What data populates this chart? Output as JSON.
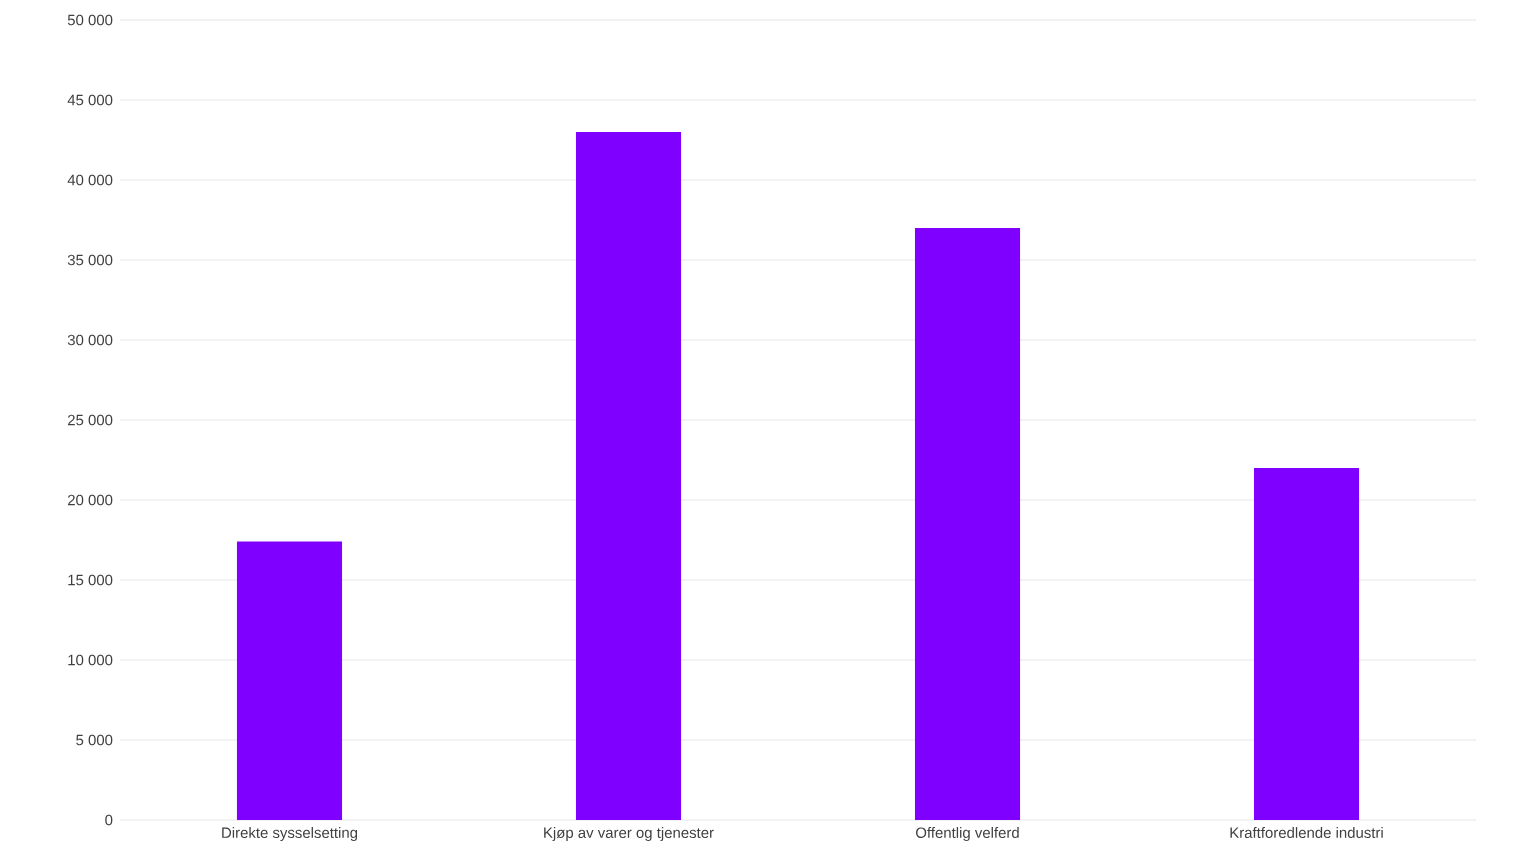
{
  "chart_data": {
    "type": "bar",
    "categories": [
      "Direkte sysselsetting",
      "Kjøp av varer og tjenester",
      "Offentlig velferd",
      "Kraftforedlende industri"
    ],
    "values": [
      17400,
      43000,
      37000,
      22000
    ],
    "color": "#8000ff",
    "ylim": [
      0,
      50000
    ],
    "yticks": [
      {
        "value": 0,
        "label": "0"
      },
      {
        "value": 5000,
        "label": "5 000"
      },
      {
        "value": 10000,
        "label": "10 000"
      },
      {
        "value": 15000,
        "label": "15 000"
      },
      {
        "value": 20000,
        "label": "20 000"
      },
      {
        "value": 25000,
        "label": "25 000"
      },
      {
        "value": 30000,
        "label": "30 000"
      },
      {
        "value": 35000,
        "label": "35 000"
      },
      {
        "value": 40000,
        "label": "40 000"
      },
      {
        "value": 45000,
        "label": "45 000"
      },
      {
        "value": 50000,
        "label": "50 000"
      }
    ],
    "grid": "y"
  }
}
